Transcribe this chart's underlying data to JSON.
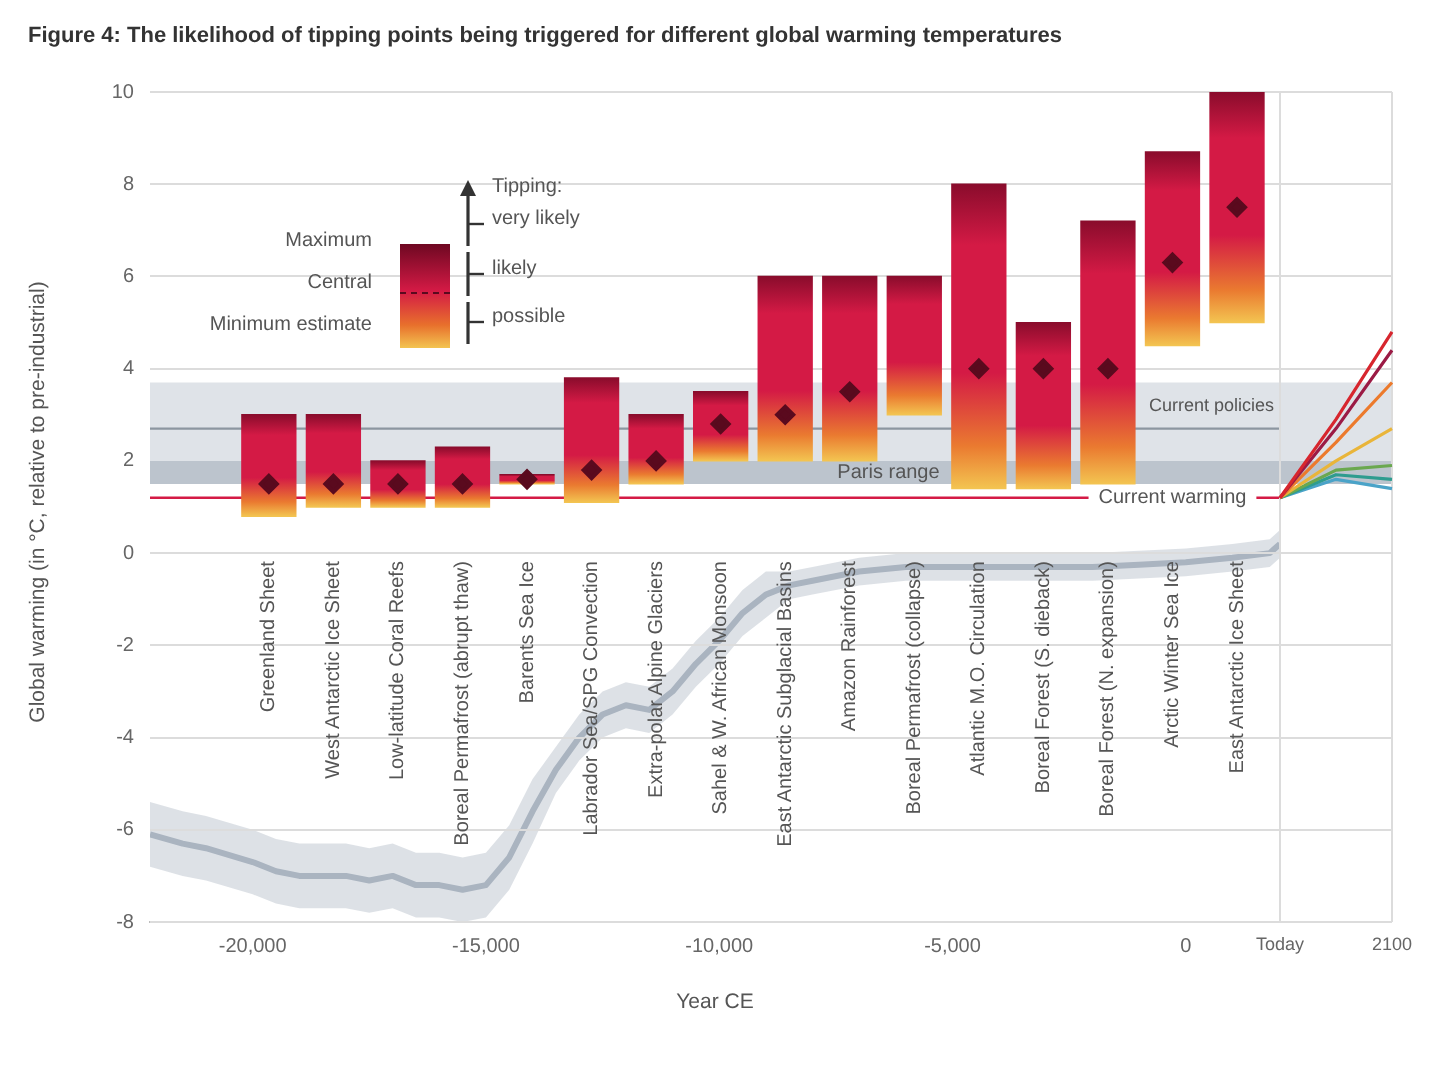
{
  "chart_data": [
    {
      "type": "bar",
      "title": "Figure 4: The likelihood of tipping points being triggered for different global warming temperatures",
      "ylabel": "Global warming (in °C, relative to pre-industrial)",
      "categories": [
        "Greenland Sheet",
        "West Antarctic Ice Sheet",
        "Low-latitude Coral Reefs",
        "Boreal Permafrost (abrupt thaw)",
        "Barents Sea Ice",
        "Labrador Sea/SPG Convection",
        "Extra-polar Alpine Glaciers",
        "Sahel & W. African Monsoon",
        "East Antarctic Subglacial Basins",
        "Amazon Rainforest",
        "Boreal Permafrost (collapse)",
        "Atlantic M.O. Circulation",
        "Boreal Forest (S. dieback)",
        "Boreal Forest (N. expansion)",
        "Arctic Winter Sea Ice",
        "East Antarctic Ice Sheet"
      ],
      "series": [
        {
          "type": "bar",
          "color": "#d41a45",
          "base": [
            0.8,
            1.0,
            1.0,
            1.0,
            1.5,
            1.1,
            1.5,
            2.0,
            2.0,
            2.0,
            3.0,
            1.4,
            1.4,
            1.5,
            4.5,
            5.0
          ],
          "values": [
            2.2,
            2.0,
            1.0,
            1.3,
            0.2,
            2.7,
            1.5,
            1.5,
            4.0,
            4.0,
            3.0,
            6.6,
            3.6,
            5.7,
            4.2,
            5.0
          ]
        },
        {
          "type": "scatter",
          "color": "#5a0a1e",
          "marker": "diamond",
          "x": [
            "Greenland Sheet",
            "West Antarctic Ice Sheet",
            "Low-latitude Coral Reefs",
            "Boreal Permafrost (abrupt thaw)",
            "Barents Sea Ice",
            "Labrador Sea/SPG Convection",
            "Extra-polar Alpine Glaciers",
            "Sahel & W. African Monsoon",
            "East Antarctic Subglacial Basins",
            "Amazon Rainforest",
            "Boreal Permafrost (collapse)",
            "Atlantic M.O. Circulation",
            "Boreal Forest (S. dieback)",
            "Boreal Forest (N. expansion)",
            "Arctic Winter Sea Ice",
            "East Antarctic Ice Sheet"
          ],
          "values": [
            1.5,
            1.5,
            1.5,
            1.5,
            1.6,
            1.8,
            2.0,
            2.8,
            3.0,
            3.5,
            null,
            4.0,
            4.0,
            4.0,
            6.3,
            7.5
          ]
        }
      ],
      "ylim": [
        -8,
        10
      ],
      "yticks": [
        -8,
        -6,
        -4,
        -2,
        0,
        2,
        4,
        6,
        8,
        10
      ],
      "grid": "y",
      "bands": [
        {
          "axis": "y",
          "from": 2.0,
          "to": 3.7,
          "label": "Current policies",
          "color": "#dfe3e8"
        },
        {
          "axis": "y",
          "from": 1.5,
          "to": 2.0,
          "label": "Paris range",
          "color": "#bcc4cd"
        }
      ],
      "ref_lines": [
        {
          "axis": "y",
          "value": 1.2,
          "label": "Current warming",
          "color": "#d41a45"
        },
        {
          "axis": "y",
          "value": 2.7,
          "color": "#8c96a0"
        }
      ],
      "annotations": [
        "Tipping:",
        "very likely",
        "likely",
        "possible",
        "Maximum",
        "Central",
        "Minimum estimate"
      ]
    },
    {
      "type": "line",
      "xlabel": "Year CE",
      "xlim": [
        -22200,
        2020
      ],
      "xticks": [
        {
          "value": -20000,
          "label": "-20,000"
        },
        {
          "value": -15000,
          "label": "-15,000"
        },
        {
          "value": -10000,
          "label": "-10,000"
        },
        {
          "value": -5000,
          "label": "-5,000"
        },
        0
      ],
      "ylim": [
        -8,
        10
      ],
      "yticks": [
        -8,
        -6,
        -4,
        -2,
        0,
        2,
        4,
        6,
        8,
        10
      ],
      "tick_labels": "x",
      "series": [
        {
          "color": "#aab4c0",
          "x": [
            -22200,
            -21500,
            -21000,
            -20000,
            -19500,
            -19000,
            -18000,
            -17500,
            -17000,
            -16500,
            -16000,
            -15500,
            -15000,
            -14500,
            -14000,
            -13500,
            -13000,
            -12500,
            -12000,
            -11500,
            -11000,
            -10500,
            -10000,
            -9500,
            -9000,
            -8500,
            -8000,
            -7000,
            -6000,
            -5000,
            -4000,
            -3000,
            -2000,
            -1000,
            0,
            1000,
            1800,
            2020
          ],
          "values": [
            -6.1,
            -6.3,
            -6.4,
            -6.7,
            -6.9,
            -7.0,
            -7.0,
            -7.1,
            -7.0,
            -7.2,
            -7.2,
            -7.3,
            -7.2,
            -6.6,
            -5.6,
            -4.7,
            -4.0,
            -3.5,
            -3.3,
            -3.4,
            -3.0,
            -2.4,
            -1.9,
            -1.3,
            -0.9,
            -0.7,
            -0.6,
            -0.4,
            -0.3,
            -0.3,
            -0.3,
            -0.3,
            -0.3,
            -0.25,
            -0.2,
            -0.1,
            0.0,
            0.2
          ],
          "lower": [
            -6.8,
            -7.0,
            -7.1,
            -7.4,
            -7.6,
            -7.7,
            -7.7,
            -7.8,
            -7.7,
            -7.9,
            -7.9,
            -8.0,
            -7.9,
            -7.3,
            -6.3,
            -5.2,
            -4.5,
            -4.0,
            -3.8,
            -3.9,
            -3.5,
            -2.9,
            -2.4,
            -1.8,
            -1.4,
            -1.0,
            -0.9,
            -0.7,
            -0.6,
            -0.6,
            -0.6,
            -0.6,
            -0.6,
            -0.55,
            -0.5,
            -0.4,
            -0.3,
            -0.1
          ],
          "upper": [
            -5.4,
            -5.6,
            -5.7,
            -6.0,
            -6.2,
            -6.3,
            -6.3,
            -6.4,
            -6.3,
            -6.5,
            -6.5,
            -6.6,
            -6.5,
            -5.9,
            -4.9,
            -4.2,
            -3.5,
            -3.0,
            -2.8,
            -2.9,
            -2.5,
            -1.9,
            -1.4,
            -0.8,
            -0.4,
            -0.4,
            -0.3,
            -0.1,
            0.0,
            0.0,
            0.0,
            0.0,
            0.0,
            0.05,
            0.1,
            0.2,
            0.3,
            0.5
          ]
        }
      ]
    },
    {
      "type": "line",
      "categories": [
        "Today",
        null,
        "2100"
      ],
      "ylim": [
        -8,
        10
      ],
      "yticks": [
        -8,
        -6,
        -4,
        -2,
        0,
        2,
        4,
        6,
        8,
        10
      ],
      "tick_labels": "x",
      "grid": "x",
      "series": [
        {
          "color": "#d7262e",
          "values": [
            1.2,
            2.9,
            4.8
          ]
        },
        {
          "color": "#9b1b45",
          "values": [
            1.2,
            2.7,
            4.4
          ]
        },
        {
          "color": "#ec7a2c",
          "values": [
            1.2,
            2.4,
            3.7
          ]
        },
        {
          "color": "#e9b53a",
          "values": [
            1.2,
            2.0,
            2.7
          ]
        },
        {
          "color": "#6aa84f",
          "values": [
            1.2,
            1.8,
            1.9
          ]
        },
        {
          "color": "#2e9c8f",
          "values": [
            1.2,
            1.7,
            1.6
          ]
        },
        {
          "color": "#4aa3c8",
          "values": [
            1.2,
            1.6,
            1.4
          ]
        }
      ]
    }
  ]
}
